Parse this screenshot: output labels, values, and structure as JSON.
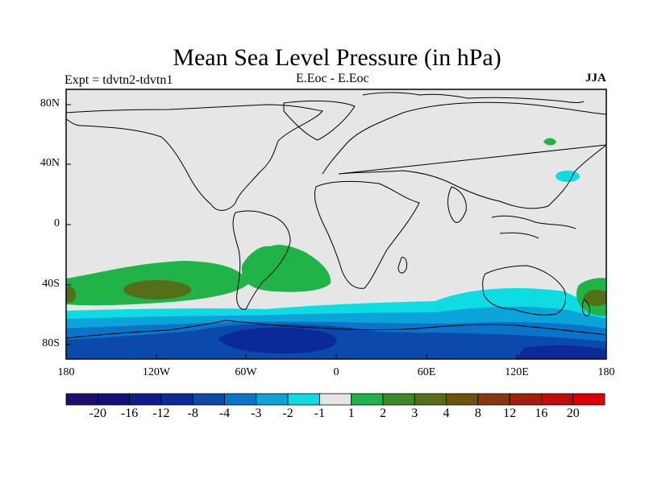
{
  "title": "Mean Sea Level Pressure (in hPa)",
  "subtitle_left": "Expt = tdvtn2-tdvtn1",
  "subtitle_center": "E.Eoc - E.Eoc",
  "subtitle_right": "JJA",
  "axes": {
    "lat_ticks": [
      "80N",
      "40N",
      "0",
      "40S",
      "80S"
    ],
    "lon_ticks": [
      "180",
      "120W",
      "60W",
      "0",
      "60E",
      "120E",
      "180"
    ]
  },
  "colorbar": {
    "labels": [
      "-20",
      "-16",
      "-12",
      "-8",
      "-4",
      "-3",
      "-2",
      "-1",
      "1",
      "2",
      "3",
      "4",
      "8",
      "12",
      "16",
      "20"
    ],
    "colors": [
      "#1e0f6e",
      "#150e7c",
      "#0e1b8f",
      "#0b2a98",
      "#0b4aaa",
      "#0c74c8",
      "#0aa4d8",
      "#0ddde2",
      "#e6e6e6",
      "#1fb348",
      "#3b8a26",
      "#556e18",
      "#6d5312",
      "#873810",
      "#a21f0e",
      "#c10c0c",
      "#dd0000"
    ]
  },
  "colors": {
    "land_bg": "#e6e6e6",
    "coast": "#000000"
  }
}
